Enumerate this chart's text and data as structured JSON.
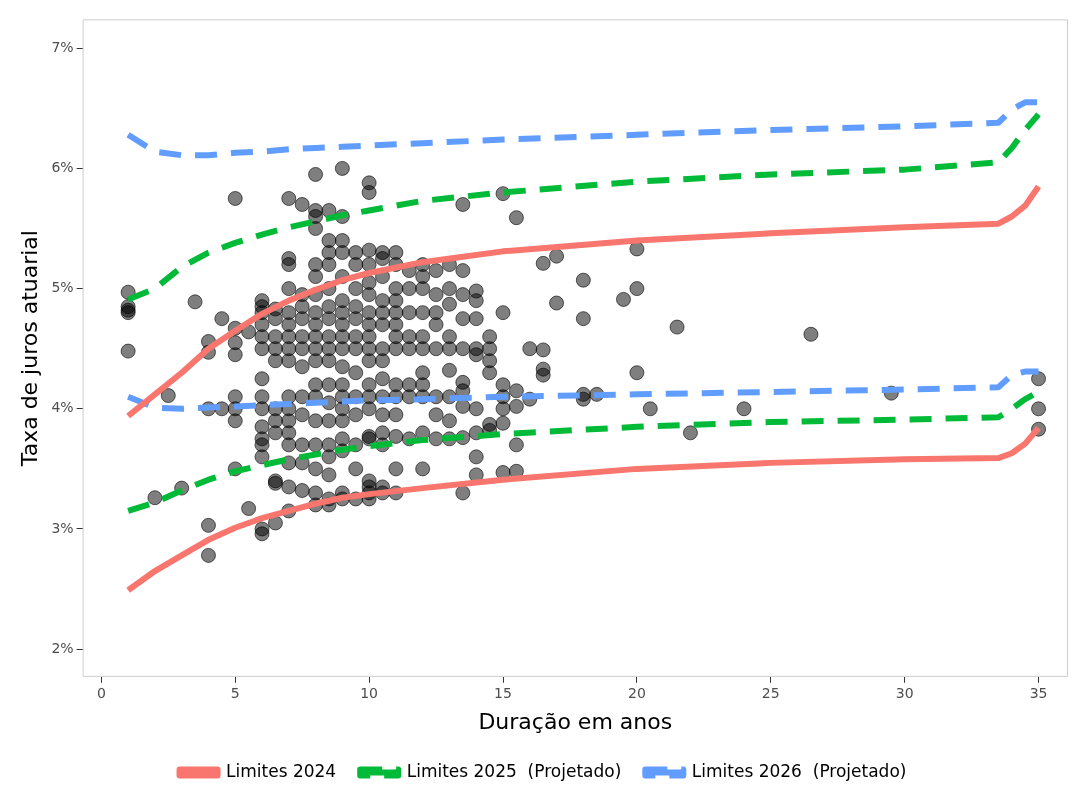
{
  "chart_data": {
    "type": "line",
    "xlabel": "Duração em anos",
    "ylabel": "Taxa de juros atuarial",
    "xlim": [
      -0.7,
      36.1
    ],
    "xticks": [
      0,
      5,
      10,
      15,
      20,
      25,
      30,
      35
    ],
    "ylim": [
      1.77,
      7.24
    ],
    "yticks": [
      {
        "value": 2,
        "label": "2%"
      },
      {
        "value": 3,
        "label": "3%"
      },
      {
        "value": 4,
        "label": "4%"
      },
      {
        "value": 5,
        "label": "5%"
      },
      {
        "value": 6,
        "label": "6%"
      },
      {
        "value": 7,
        "label": "7%"
      }
    ],
    "grid": false,
    "legend": "bottom",
    "series": [
      {
        "type": "scatter",
        "color": "#000000",
        "marker": "circle",
        "x": [
          1,
          1,
          1,
          1,
          1,
          2.5,
          3,
          2,
          3.5,
          4.5,
          4,
          4,
          4,
          4,
          4,
          5,
          5,
          5,
          5,
          5,
          5,
          5,
          5,
          5.5,
          5.5,
          4.5,
          6,
          6,
          6,
          6,
          6,
          6,
          6,
          6,
          6,
          6,
          6,
          6,
          6,
          6,
          6,
          6.5,
          6.5,
          6.5,
          6.5,
          6.5,
          6.5,
          6.5,
          6.5,
          6.5,
          6.5,
          6.5,
          7,
          7,
          7,
          7,
          7,
          7,
          7,
          7,
          7,
          7,
          7,
          7,
          7,
          7,
          7,
          7,
          7,
          7.5,
          7.5,
          7.5,
          7.5,
          7.5,
          7.5,
          7.5,
          7.5,
          7.5,
          7.5,
          7.5,
          7.5,
          8,
          8,
          8,
          8,
          8,
          8,
          8,
          8,
          8,
          8,
          8,
          8,
          8,
          8,
          8,
          8,
          8,
          8,
          8,
          8.5,
          8.5,
          8.5,
          8.5,
          8.5,
          8.5,
          8.5,
          8.5,
          8.5,
          8.5,
          8.5,
          8.5,
          8.5,
          8.5,
          8.5,
          8.5,
          8.5,
          8.5,
          9,
          9,
          9,
          9,
          9,
          9,
          9,
          9,
          9,
          9,
          9,
          9,
          9,
          9,
          9,
          9,
          9,
          9,
          9,
          9.5,
          9.5,
          9.5,
          9.5,
          9.5,
          9.5,
          9.5,
          9.5,
          9.5,
          9.5,
          9.5,
          9.5,
          9.5,
          10,
          10,
          10,
          10,
          10,
          10,
          10,
          10,
          10,
          10,
          10,
          10,
          10,
          10,
          10,
          10,
          10,
          10,
          10,
          10,
          10.5,
          10.5,
          10.5,
          10.5,
          10.5,
          10.5,
          10.5,
          10.5,
          10.5,
          10.5,
          10.5,
          10.5,
          10.5,
          10.5,
          10.5,
          11,
          11,
          11,
          11,
          11,
          11,
          11,
          11,
          11,
          11,
          11,
          11,
          11,
          11,
          11.5,
          11.5,
          11.5,
          11.5,
          11.5,
          11.5,
          11.5,
          11.5,
          12,
          12,
          12,
          12,
          12,
          12,
          12,
          12,
          12,
          12,
          12,
          12.5,
          12.5,
          12.5,
          12.5,
          12.5,
          12.5,
          12.5,
          12.5,
          13,
          13,
          13,
          13,
          13,
          13,
          13,
          13,
          13,
          13.5,
          13.5,
          13.5,
          13.5,
          13.5,
          13.5,
          13.5,
          13.5,
          13.5,
          13.5,
          14,
          14,
          14,
          14,
          14,
          14,
          14,
          14,
          14,
          14.5,
          14.5,
          14.5,
          14.5,
          14.5,
          14.5,
          15,
          15,
          15,
          15,
          15,
          15,
          15,
          15.5,
          15.5,
          15.5,
          15.5,
          15.5,
          16,
          16,
          16.5,
          16.5,
          16.5,
          16.5,
          17,
          17,
          18,
          18,
          18,
          18,
          18.5,
          19.5,
          20,
          20,
          20,
          20.5,
          21.5,
          22,
          24,
          26.5,
          29.5,
          35,
          35,
          35
        ],
        "values": [
          4.97,
          4.85,
          4.82,
          4.8,
          4.48,
          4.11,
          3.34,
          3.26,
          4.89,
          4.75,
          4.56,
          4.47,
          4,
          3.03,
          2.78,
          5.75,
          4.67,
          4.55,
          4.45,
          4.1,
          4,
          3.9,
          3.5,
          3.17,
          4.64,
          4,
          4.9,
          4.85,
          4.8,
          4.7,
          4.6,
          4.5,
          4.25,
          4.1,
          4,
          3.85,
          3.75,
          3.7,
          3.6,
          3,
          2.96,
          4.83,
          4.75,
          4.6,
          4.5,
          4.4,
          4,
          3.9,
          3.8,
          3.4,
          3.38,
          3.05,
          5.75,
          5.25,
          5.2,
          5,
          4.8,
          4.7,
          4.6,
          4.5,
          4.4,
          4.1,
          4,
          3.9,
          3.8,
          3.7,
          3.55,
          3.35,
          3.15,
          5.7,
          4.95,
          4.85,
          4.75,
          4.6,
          4.5,
          4.35,
          4.1,
          3.95,
          3.7,
          3.55,
          3.32,
          5.95,
          5.65,
          5.6,
          5.5,
          5.2,
          5.1,
          4.95,
          4.8,
          4.7,
          4.6,
          4.5,
          4.4,
          4.2,
          4.1,
          3.9,
          3.7,
          3.5,
          3.3,
          3.2,
          5.65,
          5.4,
          5.3,
          5.2,
          5,
          4.85,
          4.75,
          4.6,
          4.5,
          4.4,
          4.2,
          4.05,
          3.9,
          3.7,
          3.6,
          3.45,
          3.25,
          3.2,
          6,
          5.6,
          5.4,
          5.3,
          5.1,
          4.9,
          4.8,
          4.7,
          4.6,
          4.5,
          4.35,
          4.2,
          4.1,
          4,
          3.9,
          3.75,
          3.65,
          3.3,
          3.25,
          5.3,
          5.2,
          5,
          4.85,
          4.75,
          4.6,
          4.5,
          4.3,
          4.1,
          3.95,
          3.7,
          3.5,
          3.25,
          5.88,
          5.8,
          5.32,
          5.2,
          5.05,
          4.95,
          4.8,
          4.7,
          4.6,
          4.5,
          4.4,
          4.2,
          4.1,
          4,
          3.77,
          3.75,
          3.4,
          3.35,
          3.3,
          3.25,
          5.3,
          5.25,
          5.1,
          4.9,
          4.8,
          4.7,
          4.5,
          4.4,
          4.25,
          4.1,
          3.95,
          3.8,
          3.7,
          3.35,
          3.3,
          5.3,
          5.2,
          5,
          4.9,
          4.8,
          4.7,
          4.6,
          4.5,
          4.2,
          4.1,
          3.95,
          3.77,
          3.5,
          3.3,
          5.15,
          5,
          4.8,
          4.6,
          4.5,
          4.2,
          4.1,
          3.75,
          5.2,
          5.1,
          5,
          4.8,
          4.6,
          4.5,
          4.3,
          4.2,
          4.1,
          3.8,
          3.5,
          5.15,
          4.95,
          4.8,
          4.7,
          4.5,
          4.1,
          3.95,
          3.75,
          5.2,
          5,
          4.87,
          4.6,
          4.5,
          4.32,
          4.1,
          3.9,
          3.75,
          5.7,
          5.15,
          4.95,
          4.75,
          4.5,
          4.22,
          4.15,
          4.02,
          3.76,
          3.3,
          4.98,
          4.9,
          4.75,
          4.5,
          4.45,
          4,
          3.8,
          3.6,
          3.45,
          4.6,
          4.5,
          4.4,
          4.3,
          3.87,
          3.82,
          5.79,
          4.8,
          4.2,
          4.1,
          4,
          3.88,
          3.47,
          5.59,
          4.15,
          4.02,
          3.7,
          3.48,
          4.5,
          4.08,
          5.21,
          4.49,
          4.33,
          4.28,
          5.27,
          4.88,
          5.07,
          4.75,
          4.12,
          4.08,
          4.12,
          4.91,
          5.33,
          5,
          4.3,
          4,
          4.68,
          3.8,
          4,
          4.62,
          4.13,
          4.25,
          4,
          3.83
        ]
      },
      {
        "name": "Limites 2024",
        "line_style": "solid",
        "color": "#f8766d",
        "x": [
          1,
          2,
          3,
          4,
          5,
          6,
          7,
          8,
          9,
          10,
          12,
          15,
          20,
          25,
          30,
          33.5,
          34,
          34.5,
          35
        ],
        "values": [
          3.94,
          4.12,
          4.3,
          4.5,
          4.65,
          4.79,
          4.9,
          4.99,
          5.07,
          5.13,
          5.22,
          5.31,
          5.4,
          5.46,
          5.51,
          5.54,
          5.6,
          5.69,
          5.85
        ]
      },
      {
        "line_style": "solid",
        "color": "#f8766d",
        "x": [
          1,
          2,
          3,
          4,
          5,
          6,
          7,
          8,
          9,
          10,
          12,
          15,
          20,
          25,
          30,
          33.5,
          34,
          34.5,
          35
        ],
        "values": [
          2.49,
          2.65,
          2.78,
          2.91,
          3.01,
          3.09,
          3.15,
          3.21,
          3.26,
          3.29,
          3.34,
          3.41,
          3.5,
          3.55,
          3.58,
          3.59,
          3.63,
          3.71,
          3.84
        ]
      },
      {
        "name": "Limites 2025  (Projetado)",
        "line_style": "dashed",
        "color": "#00ba38",
        "x": [
          1,
          2,
          3,
          4,
          5,
          6,
          7,
          8,
          9,
          10,
          12,
          15,
          20,
          25,
          30,
          33.5,
          34,
          34.5,
          35
        ],
        "values": [
          4.91,
          5,
          5.18,
          5.3,
          5.38,
          5.45,
          5.51,
          5.56,
          5.61,
          5.65,
          5.73,
          5.8,
          5.89,
          5.95,
          5.99,
          6.05,
          6.17,
          6.32,
          6.45
        ]
      },
      {
        "line_style": "dashed",
        "color": "#00ba38",
        "x": [
          1,
          2,
          3,
          4,
          5,
          6,
          7,
          8,
          9,
          10,
          12,
          15,
          20,
          25,
          30,
          33.5,
          34,
          34.5,
          35
        ],
        "values": [
          3.15,
          3.22,
          3.32,
          3.41,
          3.48,
          3.53,
          3.58,
          3.62,
          3.66,
          3.69,
          3.74,
          3.79,
          3.85,
          3.89,
          3.91,
          3.93,
          4,
          4.08,
          4.14
        ]
      },
      {
        "name": "Limites 2026  (Projetado)",
        "line_style": "dashed",
        "color": "#619cff",
        "x": [
          1,
          2,
          3,
          4,
          5,
          6,
          7,
          8,
          9,
          10,
          12,
          15,
          20,
          25,
          30,
          33.5,
          34,
          34.5,
          35
        ],
        "values": [
          6.28,
          6.14,
          6.11,
          6.11,
          6.13,
          6.14,
          6.16,
          6.17,
          6.18,
          6.19,
          6.21,
          6.24,
          6.28,
          6.32,
          6.35,
          6.38,
          6.49,
          6.55,
          6.55
        ]
      },
      {
        "line_style": "dashed",
        "color": "#619cff",
        "x": [
          1,
          2,
          3,
          4,
          5,
          6,
          7,
          8,
          9,
          10,
          12,
          15,
          20,
          25,
          30,
          33.5,
          34,
          34.5,
          35
        ],
        "values": [
          4.1,
          4.01,
          4,
          4.01,
          4.02,
          4.03,
          4.04,
          4.05,
          4.06,
          4.07,
          4.08,
          4.1,
          4.12,
          4.14,
          4.16,
          4.18,
          4.28,
          4.31,
          4.31
        ]
      }
    ]
  }
}
